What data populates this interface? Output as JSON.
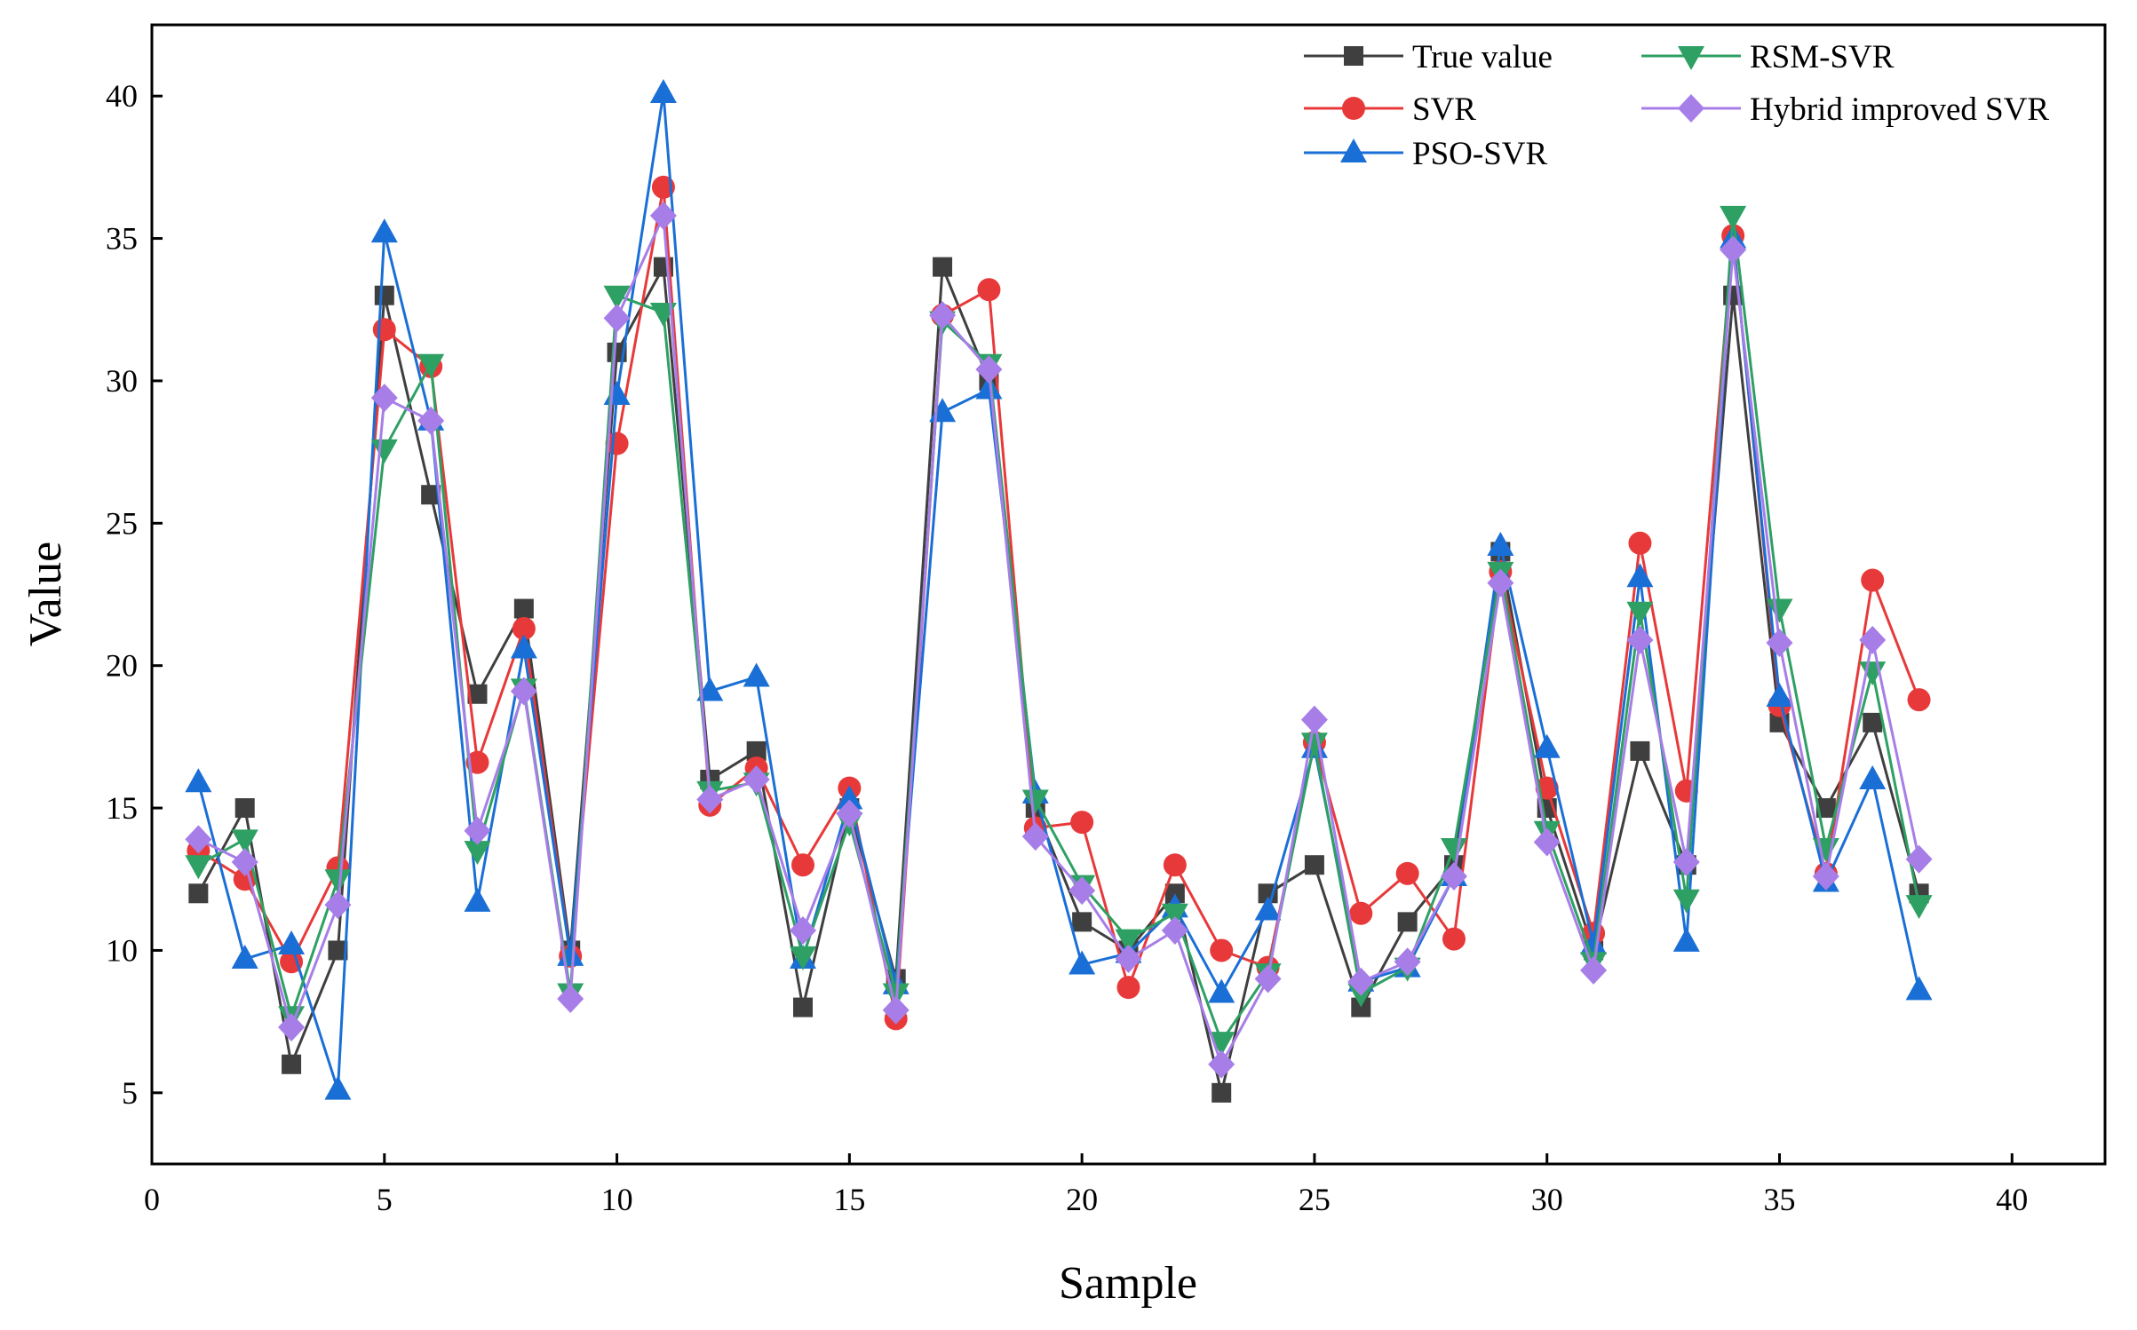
{
  "chart_data": {
    "type": "line",
    "title": "",
    "xlabel": "Sample",
    "ylabel": "Value",
    "xlim": [
      0,
      42
    ],
    "ylim": [
      2.5,
      42.5
    ],
    "xticks": [
      0,
      5,
      10,
      15,
      20,
      25,
      30,
      35,
      40
    ],
    "yticks": [
      5,
      10,
      15,
      20,
      25,
      30,
      35,
      40
    ],
    "x": [
      1,
      2,
      3,
      4,
      5,
      6,
      7,
      8,
      9,
      10,
      11,
      12,
      13,
      14,
      15,
      16,
      17,
      18,
      19,
      20,
      21,
      22,
      23,
      24,
      25,
      26,
      27,
      28,
      29,
      30,
      31,
      32,
      33,
      34,
      35,
      36,
      37,
      38
    ],
    "series": [
      {
        "name": "True value",
        "color": "#3f3f3f",
        "marker": "square",
        "values": [
          12,
          15,
          6,
          10,
          33,
          26,
          19,
          22,
          10,
          31,
          34,
          16,
          17,
          8,
          15,
          9,
          34,
          30,
          15,
          11,
          10,
          12,
          5,
          12,
          13,
          8,
          11,
          13,
          24,
          15,
          10,
          17,
          13,
          33,
          18,
          15,
          18,
          12
        ]
      },
      {
        "name": "SVR",
        "color": "#e8393a",
        "marker": "circle",
        "values": [
          13.5,
          12.5,
          9.6,
          12.9,
          31.8,
          30.5,
          16.6,
          21.3,
          9.8,
          27.8,
          36.8,
          15.1,
          16.4,
          13.0,
          15.7,
          7.6,
          32.3,
          33.2,
          14.3,
          14.5,
          8.7,
          13.0,
          10.0,
          9.4,
          17.3,
          11.3,
          12.7,
          10.4,
          23.3,
          15.7,
          10.6,
          24.3,
          15.6,
          35.1,
          18.6,
          12.7,
          23.0,
          18.8
        ]
      },
      {
        "name": "PSO-SVR",
        "color": "#1a6fd6",
        "marker": "triangle-up",
        "values": [
          15.9,
          9.7,
          10.2,
          5.1,
          35.2,
          28.6,
          11.7,
          20.6,
          9.8,
          29.5,
          40.1,
          19.1,
          19.6,
          9.7,
          15.3,
          8.8,
          28.9,
          29.7,
          15.5,
          9.5,
          9.9,
          11.5,
          8.5,
          11.4,
          17.1,
          8.9,
          9.4,
          12.6,
          24.2,
          17.1,
          10.2,
          23.1,
          10.3,
          35.0,
          18.9,
          12.4,
          16.0,
          8.6
        ]
      },
      {
        "name": "RSM-SVR",
        "color": "#2ea063",
        "marker": "triangle-down",
        "values": [
          13.0,
          13.9,
          7.7,
          12.5,
          27.6,
          30.6,
          13.5,
          19.2,
          8.5,
          33.0,
          32.4,
          15.6,
          15.9,
          9.8,
          14.5,
          8.5,
          32.1,
          30.6,
          15.3,
          12.3,
          10.4,
          11.3,
          6.8,
          9.2,
          17.3,
          8.5,
          9.4,
          13.6,
          23.3,
          14.2,
          9.6,
          21.9,
          11.8,
          35.8,
          22.0,
          13.6,
          19.8,
          11.6
        ]
      },
      {
        "name": "Hybrid improved SVR",
        "color": "#a77ee8",
        "marker": "diamond",
        "values": [
          13.9,
          13.1,
          7.3,
          11.6,
          29.4,
          28.6,
          14.2,
          19.1,
          8.3,
          32.2,
          35.8,
          15.3,
          16.0,
          10.7,
          14.8,
          7.9,
          32.3,
          30.4,
          14.0,
          12.1,
          9.7,
          10.7,
          6.0,
          9.0,
          18.1,
          8.9,
          9.6,
          12.6,
          22.9,
          13.8,
          9.3,
          20.9,
          13.1,
          34.6,
          20.8,
          12.6,
          20.9,
          13.2
        ]
      }
    ],
    "legend": {
      "placement": "top-right",
      "columns": 2,
      "items": [
        "True value",
        "SVR",
        "PSO-SVR",
        "RSM-SVR",
        "Hybrid improved SVR"
      ]
    },
    "grid": false
  }
}
